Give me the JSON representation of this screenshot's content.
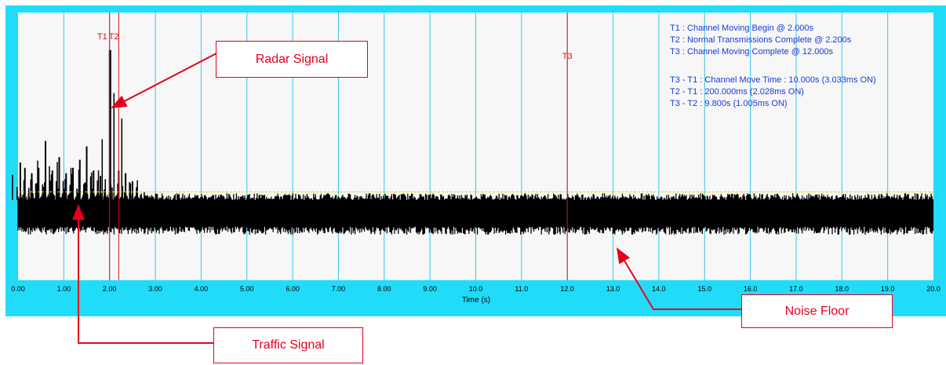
{
  "colors": {
    "frame": "#21dcf9",
    "plot_bg": "#f7f7f7",
    "grid": "#35c6ea",
    "marker": "#e01010",
    "threshold": "#e8d200",
    "signal": "#000000",
    "info_text": "#1a3ad8",
    "callout": "#e6001e"
  },
  "info_lines": [
    "T1 : Channel Moving Begin @ 2.000s",
    "T2 : Normal Transmissions Complete @ 2.200s",
    "T3 : Channel Moving Complete @ 12.000s",
    "",
    "T3 - T1 : Channel Move Time : 10.000s (3.033ms ON)",
    "T2 - T1 : 200.000ms (2.028ms ON)",
    "T3 - T2 : 9.800s (1.005ms ON)"
  ],
  "callouts": {
    "radar": "Radar Signal",
    "traffic": "Traffic Signal",
    "noise": "Noise Floor"
  },
  "chart_data": {
    "type": "line",
    "title": "",
    "xlabel": "Time (s)",
    "ylabel": "",
    "xlim": [
      0,
      20
    ],
    "ylim": [
      0,
      1
    ],
    "grid": true,
    "x_ticks": [
      "0.00",
      "1.00",
      "2.00",
      "3.00",
      "4.00",
      "5.00",
      "6.00",
      "7.00",
      "8.00",
      "9.00",
      "10.0",
      "11.0",
      "12.0",
      "13.0",
      "14.0",
      "15.0",
      "16.0",
      "17.0",
      "18.0",
      "19.0",
      "20.0"
    ],
    "markers": [
      {
        "name": "T1",
        "x": 2.0
      },
      {
        "name": "T2",
        "x": 2.2
      },
      {
        "name": "T3",
        "x": 12.0
      }
    ],
    "threshold": 0.33,
    "noise_floor": {
      "x_range": [
        0,
        20
      ],
      "y_low": 0.2,
      "y_high": 0.3
    },
    "bursts": [
      {
        "x": 0.05,
        "y": 0.44
      },
      {
        "x": 0.15,
        "y": 0.42
      },
      {
        "x": 0.3,
        "y": 0.4
      },
      {
        "x": 0.45,
        "y": 0.42
      },
      {
        "x": 0.6,
        "y": 0.52
      },
      {
        "x": 0.75,
        "y": 0.41
      },
      {
        "x": 0.9,
        "y": 0.46
      },
      {
        "x": 1.05,
        "y": 0.4
      },
      {
        "x": 1.2,
        "y": 0.42
      },
      {
        "x": 1.35,
        "y": 0.45
      },
      {
        "x": 1.5,
        "y": 0.5
      },
      {
        "x": 1.65,
        "y": 0.41
      },
      {
        "x": 1.8,
        "y": 0.39
      },
      {
        "x": 2.01,
        "y": 0.86
      },
      {
        "x": 2.2,
        "y": 0.41
      },
      {
        "x": 2.35,
        "y": 0.4
      },
      {
        "x": 2.5,
        "y": 0.37
      }
    ]
  }
}
